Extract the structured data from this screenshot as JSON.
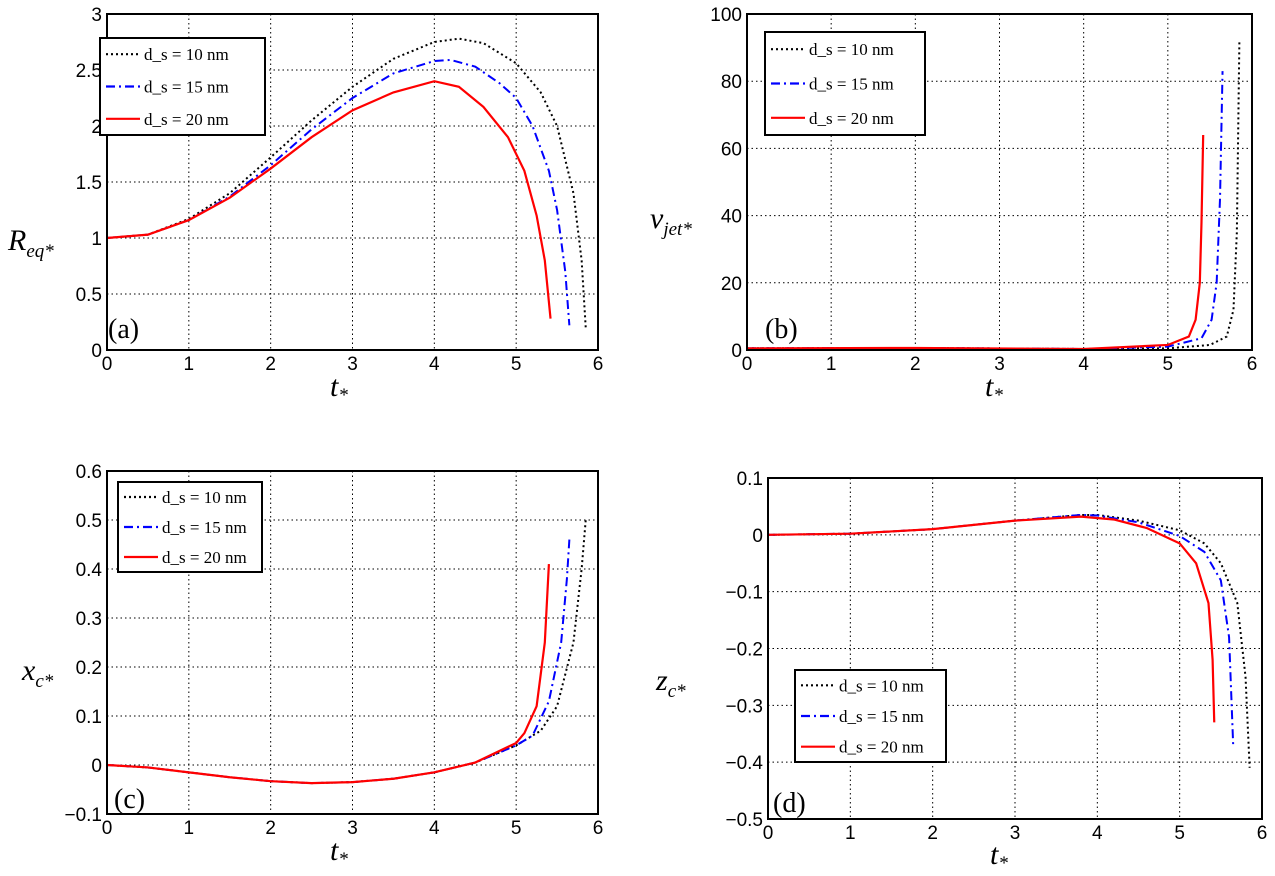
{
  "colors": {
    "d10": "#000000",
    "d15": "#0000ff",
    "d20": "#ff0000"
  },
  "chart_data": [
    {
      "type": "line",
      "panel_label": "(a)",
      "ylabel": "R",
      "ylabel_sub": "eq*",
      "xlabel": "t",
      "xlabel_sub": "*",
      "xlim": [
        0,
        6
      ],
      "ylim": [
        0,
        3
      ],
      "xticks": [
        "0",
        "1",
        "2",
        "3",
        "4",
        "5",
        "6"
      ],
      "yticks": [
        "0",
        "0.5",
        "1",
        "1.5",
        "2",
        "2.5",
        "3"
      ],
      "grid": true,
      "legend": "top-left",
      "series": [
        {
          "name": "d_s = 10 nm",
          "style": "dotted",
          "color": "#000000",
          "x": [
            0,
            0.5,
            1,
            1.5,
            2,
            2.5,
            3,
            3.5,
            4,
            4.3,
            4.6,
            5,
            5.3,
            5.5,
            5.7,
            5.8,
            5.85
          ],
          "y": [
            1,
            1.03,
            1.17,
            1.4,
            1.72,
            2.05,
            2.35,
            2.6,
            2.75,
            2.78,
            2.74,
            2.56,
            2.3,
            2.0,
            1.4,
            0.8,
            0.2
          ]
        },
        {
          "name": "d_s = 15 nm",
          "style": "dashdot",
          "color": "#0000ff",
          "x": [
            0,
            0.5,
            1,
            1.5,
            2,
            2.5,
            3,
            3.5,
            4,
            4.2,
            4.5,
            4.8,
            5,
            5.2,
            5.4,
            5.5,
            5.6,
            5.65
          ],
          "y": [
            1,
            1.03,
            1.16,
            1.37,
            1.65,
            1.97,
            2.25,
            2.47,
            2.58,
            2.59,
            2.53,
            2.38,
            2.25,
            2.0,
            1.6,
            1.25,
            0.7,
            0.22
          ]
        },
        {
          "name": "d_s = 20 nm",
          "style": "solid",
          "color": "#ff0000",
          "x": [
            0,
            0.5,
            1,
            1.5,
            2,
            2.5,
            3,
            3.5,
            4,
            4.3,
            4.6,
            4.9,
            5.1,
            5.25,
            5.35,
            5.42
          ],
          "y": [
            1,
            1.03,
            1.16,
            1.36,
            1.62,
            1.9,
            2.14,
            2.3,
            2.4,
            2.35,
            2.17,
            1.9,
            1.6,
            1.2,
            0.8,
            0.28
          ]
        }
      ]
    },
    {
      "type": "line",
      "panel_label": "(b)",
      "ylabel": "v",
      "ylabel_sub": "jet*",
      "xlabel": "t",
      "xlabel_sub": "*",
      "xlim": [
        0,
        6
      ],
      "ylim": [
        0,
        100
      ],
      "xticks": [
        "0",
        "1",
        "2",
        "3",
        "4",
        "5",
        "6"
      ],
      "yticks": [
        "0",
        "20",
        "40",
        "60",
        "80",
        "100"
      ],
      "grid": true,
      "legend": "top-left",
      "series": [
        {
          "name": "d_s = 10 nm",
          "style": "dotted",
          "color": "#000000",
          "x": [
            0,
            2,
            4,
            5,
            5.5,
            5.7,
            5.78,
            5.82,
            5.85
          ],
          "y": [
            0.5,
            0.6,
            0.3,
            0.5,
            1.5,
            4,
            12,
            35,
            92
          ]
        },
        {
          "name": "d_s = 15 nm",
          "style": "dashdot",
          "color": "#0000ff",
          "x": [
            0,
            2,
            4,
            5,
            5.4,
            5.52,
            5.58,
            5.62,
            5.65
          ],
          "y": [
            0.5,
            0.6,
            0.3,
            1,
            3.5,
            9,
            20,
            45,
            83
          ]
        },
        {
          "name": "d_s = 20 nm",
          "style": "solid",
          "color": "#ff0000",
          "x": [
            0,
            2,
            4,
            5,
            5.25,
            5.33,
            5.38,
            5.4,
            5.42
          ],
          "y": [
            0.5,
            0.6,
            0.3,
            1.5,
            4,
            9,
            20,
            38,
            64
          ]
        }
      ]
    },
    {
      "type": "line",
      "panel_label": "(c)",
      "ylabel": "x",
      "ylabel_sub": "c*",
      "xlabel": "t",
      "xlabel_sub": "*",
      "xlim": [
        0,
        6
      ],
      "ylim": [
        -0.1,
        0.6
      ],
      "xticks": [
        "0",
        "1",
        "2",
        "3",
        "4",
        "5",
        "6"
      ],
      "yticks": [
        "-0.1",
        "0",
        "0.1",
        "0.2",
        "0.3",
        "0.4",
        "0.5",
        "0.6"
      ],
      "grid": true,
      "legend": "top-left",
      "series": [
        {
          "name": "d_s = 10 nm",
          "style": "dotted",
          "color": "#000000",
          "x": [
            0,
            0.5,
            1,
            1.5,
            2,
            2.5,
            3,
            3.5,
            4,
            4.5,
            5,
            5.3,
            5.5,
            5.7,
            5.8,
            5.85
          ],
          "y": [
            0,
            -0.005,
            -0.015,
            -0.025,
            -0.033,
            -0.037,
            -0.035,
            -0.028,
            -0.015,
            0.005,
            0.04,
            0.07,
            0.12,
            0.25,
            0.4,
            0.5
          ]
        },
        {
          "name": "d_s = 15 nm",
          "style": "dashdot",
          "color": "#0000ff",
          "x": [
            0,
            0.5,
            1,
            1.5,
            2,
            2.5,
            3,
            3.5,
            4,
            4.5,
            5,
            5.2,
            5.4,
            5.55,
            5.62,
            5.65
          ],
          "y": [
            0,
            -0.005,
            -0.015,
            -0.025,
            -0.033,
            -0.037,
            -0.035,
            -0.028,
            -0.015,
            0.005,
            0.04,
            0.06,
            0.13,
            0.25,
            0.38,
            0.46
          ]
        },
        {
          "name": "d_s = 20 nm",
          "style": "solid",
          "color": "#ff0000",
          "x": [
            0,
            0.5,
            1,
            1.5,
            2,
            2.5,
            3,
            3.5,
            4,
            4.5,
            5,
            5.1,
            5.25,
            5.35,
            5.4
          ],
          "y": [
            0,
            -0.005,
            -0.015,
            -0.025,
            -0.033,
            -0.037,
            -0.035,
            -0.028,
            -0.015,
            0.005,
            0.045,
            0.065,
            0.12,
            0.25,
            0.41
          ]
        }
      ]
    },
    {
      "type": "line",
      "panel_label": "(d)",
      "ylabel": "z",
      "ylabel_sub": "c*",
      "xlabel": "t",
      "xlabel_sub": "*",
      "xlim": [
        0,
        6
      ],
      "ylim": [
        -0.5,
        0.1
      ],
      "xticks": [
        "0",
        "1",
        "2",
        "3",
        "4",
        "5",
        "6"
      ],
      "yticks": [
        "-0.5",
        "-0.4",
        "-0.3",
        "-0.2",
        "-0.1",
        "0",
        "0.1"
      ],
      "grid": true,
      "legend": "bottom-left",
      "series": [
        {
          "name": "d_s = 10 nm",
          "style": "dotted",
          "color": "#000000",
          "x": [
            0,
            1,
            2,
            3,
            3.8,
            4,
            4.5,
            5,
            5.3,
            5.5,
            5.7,
            5.8,
            5.85
          ],
          "y": [
            0,
            0.002,
            0.01,
            0.025,
            0.035,
            0.035,
            0.025,
            0.008,
            -0.015,
            -0.05,
            -0.12,
            -0.25,
            -0.41
          ]
        },
        {
          "name": "d_s = 15 nm",
          "style": "dashdot",
          "color": "#0000ff",
          "x": [
            0,
            1,
            2,
            3,
            3.8,
            4,
            4.5,
            5,
            5.3,
            5.5,
            5.6,
            5.65
          ],
          "y": [
            0,
            0.002,
            0.01,
            0.025,
            0.035,
            0.034,
            0.022,
            -0.002,
            -0.03,
            -0.08,
            -0.18,
            -0.37
          ]
        },
        {
          "name": "d_s = 20 nm",
          "style": "solid",
          "color": "#ff0000",
          "x": [
            0,
            1,
            2,
            3,
            3.8,
            4.2,
            4.6,
            5,
            5.2,
            5.35,
            5.4,
            5.42
          ],
          "y": [
            0,
            0.002,
            0.01,
            0.025,
            0.032,
            0.027,
            0.012,
            -0.015,
            -0.05,
            -0.12,
            -0.22,
            -0.33
          ]
        }
      ]
    }
  ]
}
